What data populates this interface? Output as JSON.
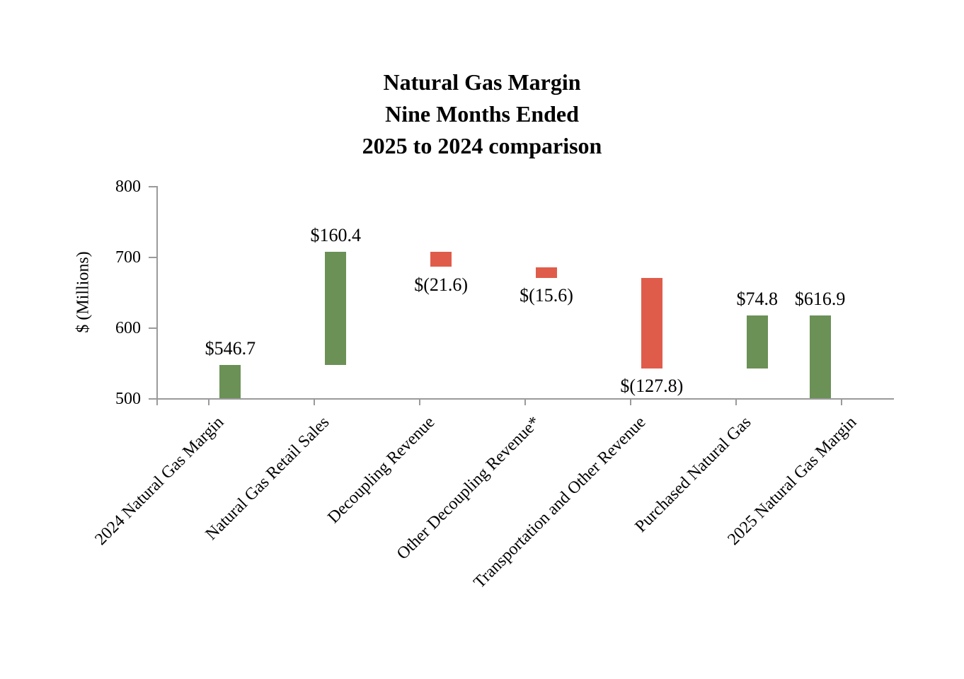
{
  "title": {
    "lines": [
      "Natural Gas Margin",
      "Nine Months Ended",
      "2025 to 2024 comparison"
    ]
  },
  "colors": {
    "increase_green": "#6B9156",
    "decrease_red": "#E05C4A",
    "axis_gray": "#9a9a9a",
    "text": "#000000"
  },
  "chart_data": {
    "type": "bar",
    "subtype": "waterfall",
    "title": "Natural Gas Margin Nine Months Ended 2025 to 2024 comparison",
    "xlabel": "",
    "ylabel": "$ (Millions)",
    "ylim": [
      500,
      800
    ],
    "yticks": [
      800,
      700,
      600,
      500
    ],
    "ytick_labels": [
      "800",
      "700",
      "600",
      "500"
    ],
    "grid": false,
    "legend": "none",
    "categories": [
      "2024 Natural Gas Margin",
      "Natural Gas Retail Sales",
      "Decoupling Revenue",
      "Other Decoupling Revenue*",
      "Transportation and Other Revenue",
      "Purchased Natural Gas",
      "2025 Natural Gas Margin"
    ],
    "series": [
      {
        "category": "2024 Natural Gas Margin",
        "value": 546.7,
        "label": "$546.7",
        "start": 500,
        "end": 546.7,
        "color": "green",
        "label_position": "above"
      },
      {
        "category": "Natural Gas Retail Sales",
        "value": 160.4,
        "label": "$160.4",
        "start": 546.7,
        "end": 707.1,
        "color": "green",
        "label_position": "above"
      },
      {
        "category": "Decoupling Revenue",
        "value": -21.6,
        "label": "$(21.6)",
        "start": 707.1,
        "end": 685.5,
        "color": "red",
        "label_position": "below"
      },
      {
        "category": "Other Decoupling Revenue*",
        "value": -15.6,
        "label": "$(15.6)",
        "start": 685.5,
        "end": 669.9,
        "color": "red",
        "label_position": "below"
      },
      {
        "category": "Transportation and Other Revenue",
        "value": -127.8,
        "label": "$(127.8)",
        "start": 669.9,
        "end": 542.1,
        "color": "red",
        "label_position": "below"
      },
      {
        "category": "Purchased Natural Gas",
        "value": 74.8,
        "label": "$74.8",
        "start": 542.1,
        "end": 616.9,
        "color": "green",
        "label_position": "above"
      },
      {
        "category": "2025 Natural Gas Margin",
        "value": 616.9,
        "label": "$616.9",
        "start": 500,
        "end": 616.9,
        "color": "green",
        "label_position": "above"
      }
    ]
  }
}
